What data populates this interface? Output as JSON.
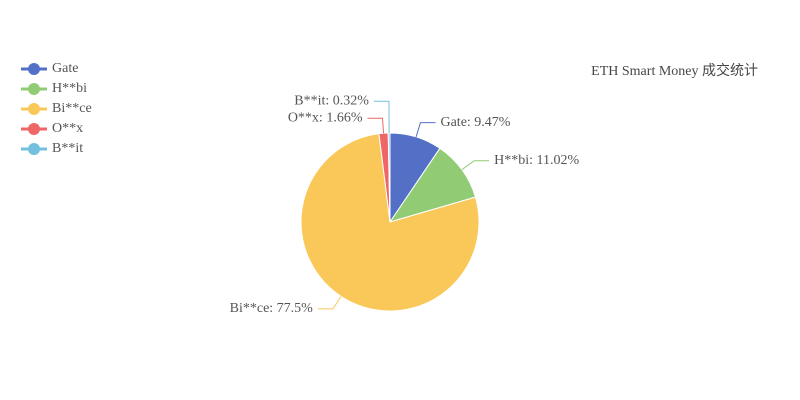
{
  "chart_data": {
    "type": "pie",
    "title": "ETH Smart Money 成交统计",
    "categories": [
      "Gate",
      "H**bi",
      "Bi**ce",
      "O**x",
      "B**it"
    ],
    "values": [
      9.47,
      11.02,
      77.5,
      1.66,
      0.32
    ],
    "value_labels": [
      "Gate: 9.47%",
      "H**bi: 11.02%",
      "Bi**ce: 77.5%",
      "O**x: 1.66%",
      "B**it: 0.32%"
    ],
    "colors": [
      "#5470c6",
      "#91cc75",
      "#fac858",
      "#ee6666",
      "#73c0de"
    ],
    "legend": "top-left"
  }
}
